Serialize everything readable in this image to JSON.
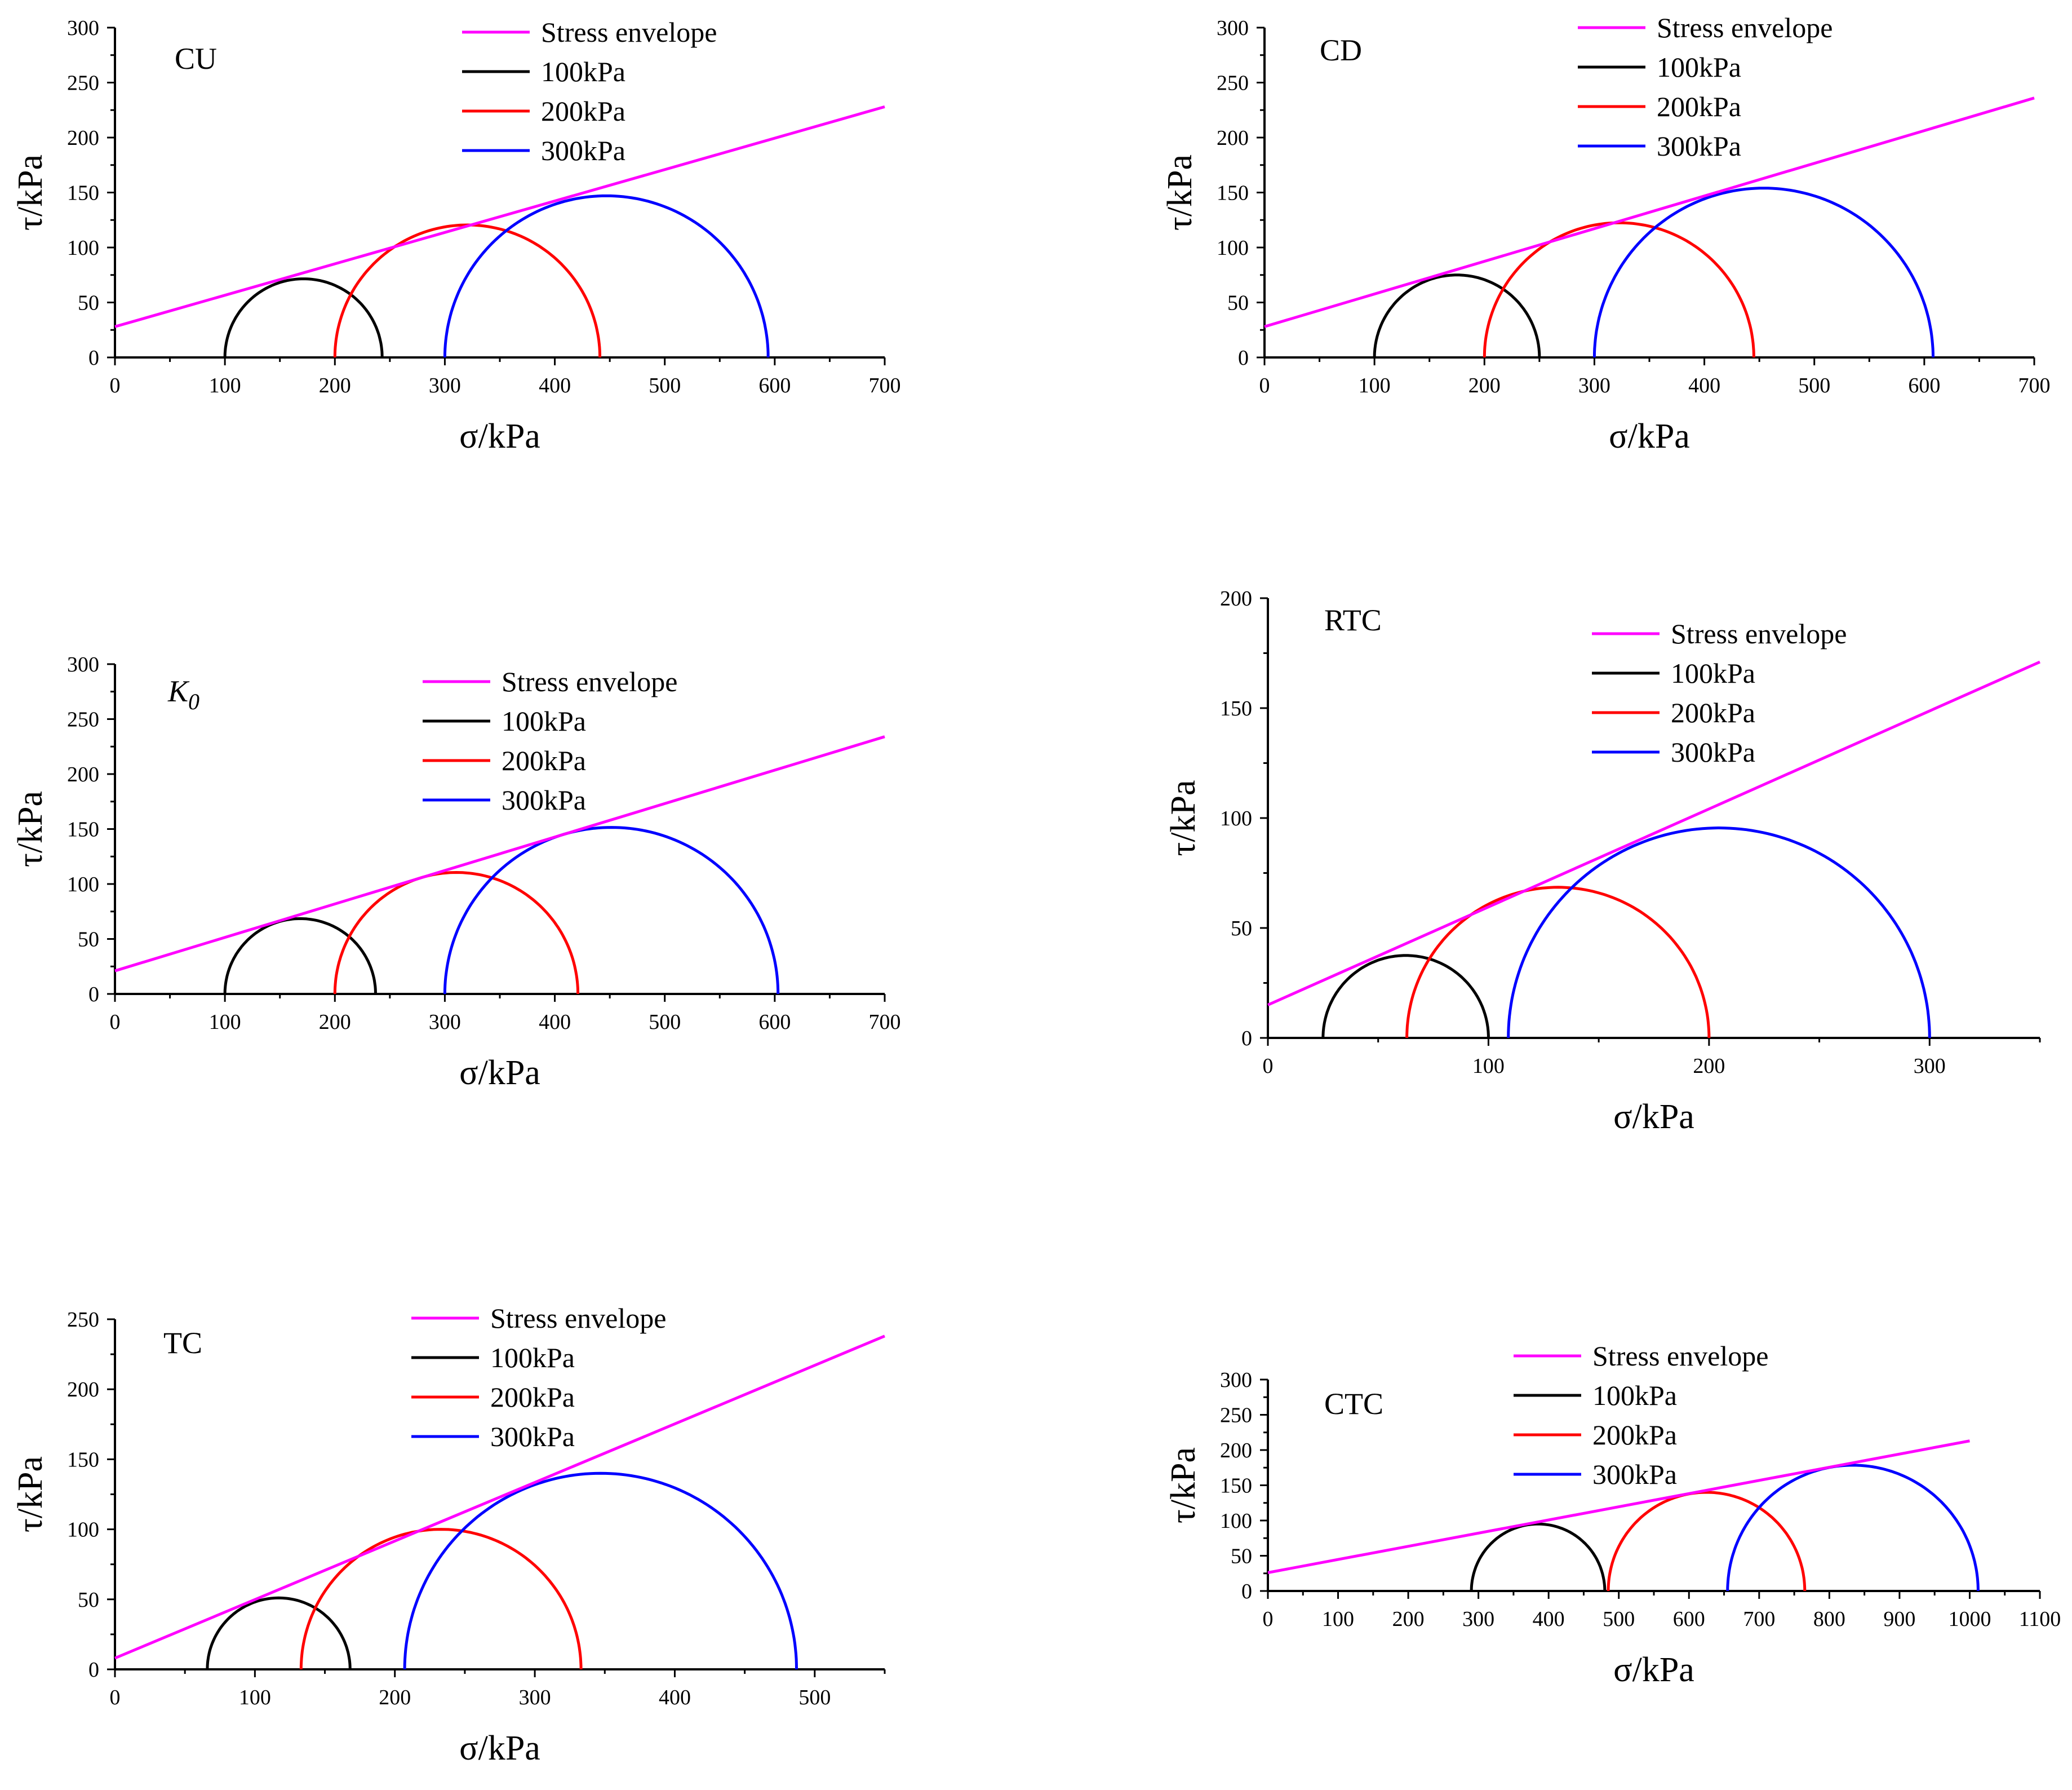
{
  "figure": {
    "colors": {
      "envelope": "#ff00ff",
      "100kPa": "#000000",
      "200kPa": "#ff0000",
      "300kPa": "#0000ff",
      "axis": "#000000",
      "background": "#ffffff"
    }
  },
  "chart_data": [
    {
      "type": "line",
      "panel_label": "CU",
      "xlabel": "σ/kPa",
      "ylabel": "τ/kPa",
      "xlim": [
        0,
        700
      ],
      "ylim": [
        0,
        300
      ],
      "x_ticks": [
        "0",
        "100",
        "200",
        "300",
        "400",
        "500",
        "600",
        "700"
      ],
      "y_ticks": [
        "0",
        "50",
        "100",
        "150",
        "200",
        "250",
        "300"
      ],
      "legend": [
        "Stress envelope",
        "100kPa",
        "200kPa",
        "300kPa"
      ],
      "envelope": {
        "name": "Stress envelope",
        "x": [
          0,
          700
        ],
        "y": [
          28,
          228
        ]
      },
      "circles": [
        {
          "name": "100kPa",
          "sigma3": 100,
          "sigma1": 243
        },
        {
          "name": "200kPa",
          "sigma3": 200,
          "sigma1": 441
        },
        {
          "name": "300kPa",
          "sigma3": 300,
          "sigma1": 594
        }
      ]
    },
    {
      "type": "line",
      "panel_label": "CD",
      "xlabel": "σ/kPa",
      "ylabel": "τ/kPa",
      "xlim": [
        0,
        700
      ],
      "ylim": [
        0,
        300
      ],
      "x_ticks": [
        "0",
        "100",
        "200",
        "300",
        "400",
        "500",
        "600",
        "700"
      ],
      "y_ticks": [
        "0",
        "50",
        "100",
        "150",
        "200",
        "250",
        "300"
      ],
      "legend": [
        "Stress envelope",
        "100kPa",
        "200kPa",
        "300kPa"
      ],
      "envelope": {
        "name": "Stress envelope",
        "x": [
          0,
          700
        ],
        "y": [
          28,
          236
        ]
      },
      "circles": [
        {
          "name": "100kPa",
          "sigma3": 100,
          "sigma1": 250
        },
        {
          "name": "200kPa",
          "sigma3": 200,
          "sigma1": 445
        },
        {
          "name": "300kPa",
          "sigma3": 300,
          "sigma1": 608
        }
      ]
    },
    {
      "type": "line",
      "panel_label": "K",
      "panel_label_sub": "0",
      "xlabel": "σ/kPa",
      "ylabel": "τ/kPa",
      "xlim": [
        0,
        700
      ],
      "ylim": [
        0,
        300
      ],
      "x_ticks": [
        "0",
        "100",
        "200",
        "300",
        "400",
        "500",
        "600",
        "700"
      ],
      "y_ticks": [
        "0",
        "50",
        "100",
        "150",
        "200",
        "250",
        "300"
      ],
      "legend": [
        "Stress envelope",
        "100kPa",
        "200kPa",
        "300kPa"
      ],
      "envelope": {
        "name": "Stress envelope",
        "x": [
          0,
          700
        ],
        "y": [
          21,
          234
        ]
      },
      "circles": [
        {
          "name": "100kPa",
          "sigma3": 100,
          "sigma1": 237
        },
        {
          "name": "200kPa",
          "sigma3": 200,
          "sigma1": 421
        },
        {
          "name": "300kPa",
          "sigma3": 300,
          "sigma1": 603
        }
      ]
    },
    {
      "type": "line",
      "panel_label": "RTC",
      "xlabel": "σ/kPa",
      "ylabel": "τ/kPa",
      "xlim": [
        0,
        350
      ],
      "ylim": [
        0,
        200
      ],
      "x_ticks": [
        "0",
        "100",
        "200",
        "300"
      ],
      "y_ticks": [
        "0",
        "50",
        "100",
        "150",
        "200"
      ],
      "legend": [
        "Stress envelope",
        "100kPa",
        "200kPa",
        "300kPa"
      ],
      "envelope": {
        "name": "Stress envelope",
        "x": [
          0,
          350
        ],
        "y": [
          15,
          171
        ]
      },
      "circles": [
        {
          "name": "100kPa",
          "sigma3": 25,
          "sigma1": 100
        },
        {
          "name": "200kPa",
          "sigma3": 63,
          "sigma1": 200
        },
        {
          "name": "300kPa",
          "sigma3": 109,
          "sigma1": 300
        }
      ]
    },
    {
      "type": "line",
      "panel_label": "TC",
      "xlabel": "σ/kPa",
      "ylabel": "τ/kPa",
      "xlim": [
        0,
        550
      ],
      "ylim": [
        0,
        250
      ],
      "x_ticks": [
        "0",
        "100",
        "200",
        "300",
        "400",
        "500"
      ],
      "y_ticks": [
        "0",
        "50",
        "100",
        "150",
        "200",
        "250"
      ],
      "legend": [
        "Stress envelope",
        "100kPa",
        "200kPa",
        "300kPa"
      ],
      "envelope": {
        "name": "Stress envelope",
        "x": [
          0,
          550
        ],
        "y": [
          8,
          238
        ]
      },
      "circles": [
        {
          "name": "100kPa",
          "sigma3": 66,
          "sigma1": 168
        },
        {
          "name": "200kPa",
          "sigma3": 133,
          "sigma1": 333
        },
        {
          "name": "300kPa",
          "sigma3": 207,
          "sigma1": 487
        }
      ]
    },
    {
      "type": "line",
      "panel_label": "CTC",
      "xlabel": "σ/kPa",
      "ylabel": "τ/kPa",
      "xlim": [
        0,
        1100
      ],
      "ylim": [
        0,
        300
      ],
      "x_ticks": [
        "0",
        "100",
        "200",
        "300",
        "400",
        "500",
        "600",
        "700",
        "800",
        "900",
        "1000",
        "1100"
      ],
      "y_ticks": [
        "0",
        "50",
        "100",
        "150",
        "200",
        "250",
        "300"
      ],
      "legend": [
        "Stress envelope",
        "100kPa",
        "200kPa",
        "300kPa"
      ],
      "envelope": {
        "name": "Stress envelope",
        "x": [
          0,
          1000
        ],
        "y": [
          26,
          213
        ]
      },
      "circles": [
        {
          "name": "100kPa",
          "sigma3": 290,
          "sigma1": 480
        },
        {
          "name": "200kPa",
          "sigma3": 485,
          "sigma1": 765
        },
        {
          "name": "300kPa",
          "sigma3": 655,
          "sigma1": 1012
        }
      ]
    }
  ]
}
